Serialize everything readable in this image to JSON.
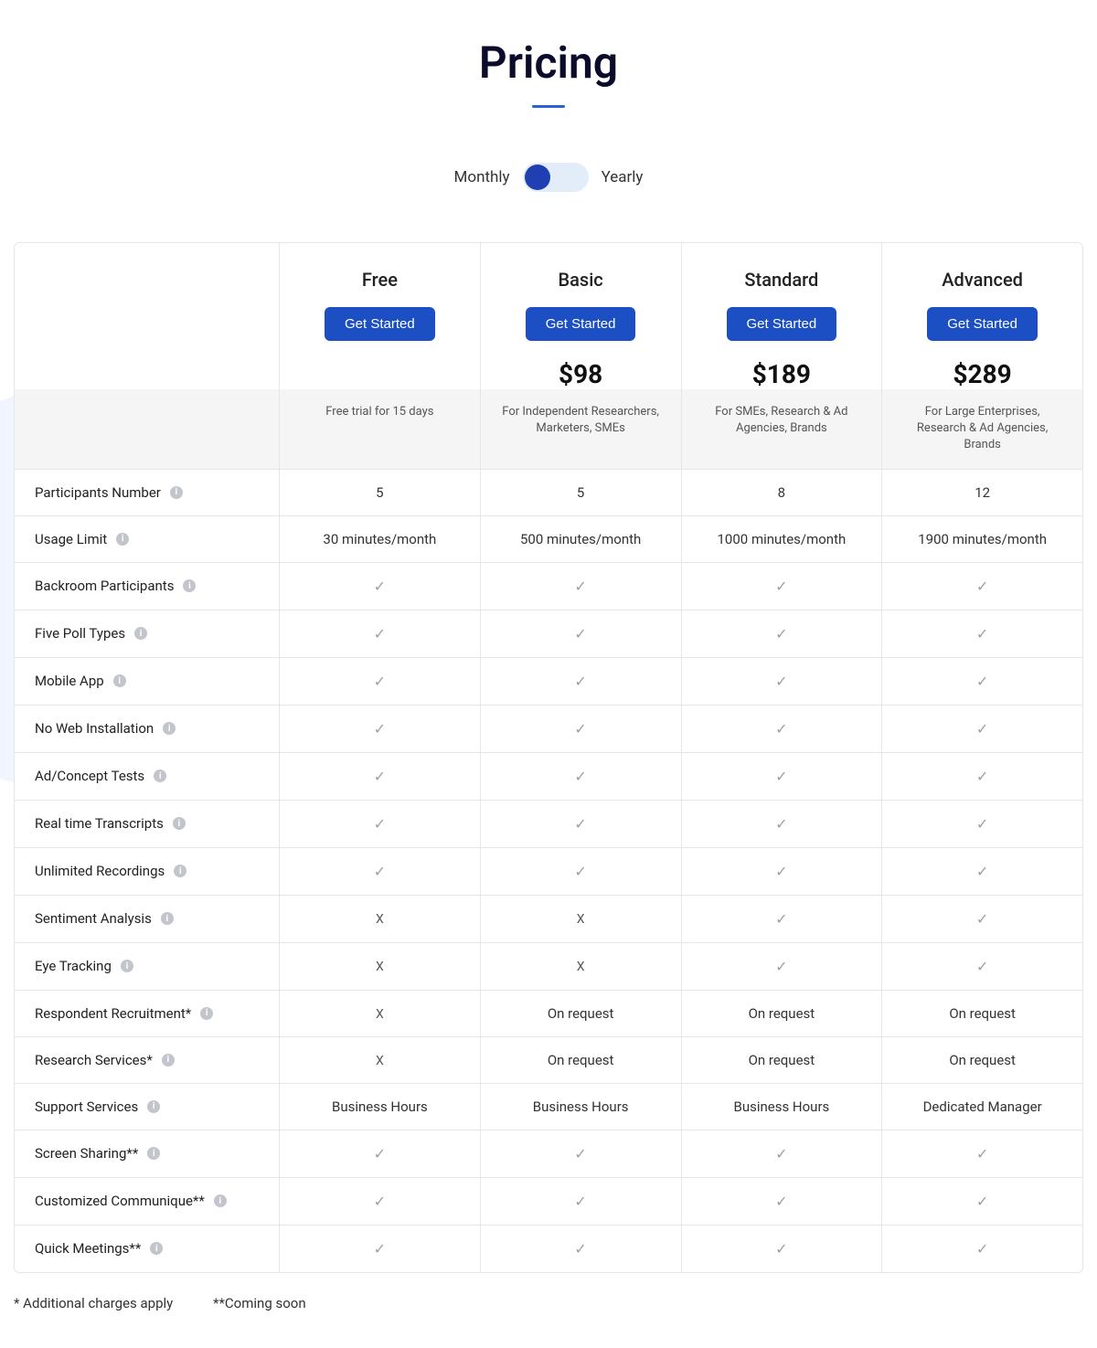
{
  "title": "Pricing",
  "toggle": {
    "left": "Monthly",
    "right": "Yearly"
  },
  "plans": [
    {
      "name": "Free",
      "cta": "Get Started",
      "price": "",
      "desc": "Free trial for 15 days"
    },
    {
      "name": "Basic",
      "cta": "Get Started",
      "price": "$98",
      "desc": "For Independent Researchers, Marketers, SMEs"
    },
    {
      "name": "Standard",
      "cta": "Get Started",
      "price": "$189",
      "desc": "For SMEs, Research & Ad Agencies, Brands"
    },
    {
      "name": "Advanced",
      "cta": "Get Started",
      "price": "$289",
      "desc": "For Large Enterprises, Research & Ad Agencies, Brands"
    }
  ],
  "features": [
    {
      "label": "Participants Number",
      "values": [
        "5",
        "5",
        "8",
        "12"
      ]
    },
    {
      "label": "Usage Limit",
      "values": [
        "30 minutes/month",
        "500 minutes/month",
        "1000 minutes/month",
        "1900 minutes/month"
      ]
    },
    {
      "label": "Backroom Participants",
      "values": [
        "✓",
        "✓",
        "✓",
        "✓"
      ]
    },
    {
      "label": "Five Poll Types",
      "values": [
        "✓",
        "✓",
        "✓",
        "✓"
      ]
    },
    {
      "label": "Mobile App",
      "values": [
        "✓",
        "✓",
        "✓",
        "✓"
      ]
    },
    {
      "label": "No Web Installation",
      "values": [
        "✓",
        "✓",
        "✓",
        "✓"
      ]
    },
    {
      "label": "Ad/Concept Tests",
      "values": [
        "✓",
        "✓",
        "✓",
        "✓"
      ]
    },
    {
      "label": "Real time Transcripts",
      "values": [
        "✓",
        "✓",
        "✓",
        "✓"
      ]
    },
    {
      "label": "Unlimited Recordings",
      "values": [
        "✓",
        "✓",
        "✓",
        "✓"
      ]
    },
    {
      "label": "Sentiment Analysis",
      "values": [
        "X",
        "X",
        "✓",
        "✓"
      ]
    },
    {
      "label": "Eye Tracking",
      "values": [
        "X",
        "X",
        "✓",
        "✓"
      ]
    },
    {
      "label": "Respondent Recruitment*",
      "values": [
        "X",
        "On request",
        "On request",
        "On request"
      ]
    },
    {
      "label": "Research Services*",
      "values": [
        "X",
        "On request",
        "On request",
        "On request"
      ]
    },
    {
      "label": "Support Services",
      "values": [
        "Business Hours",
        "Business Hours",
        "Business Hours",
        "Dedicated Manager"
      ]
    },
    {
      "label": "Screen Sharing**",
      "values": [
        "✓",
        "✓",
        "✓",
        "✓"
      ]
    },
    {
      "label": "Customized Communique**",
      "values": [
        "✓",
        "✓",
        "✓",
        "✓"
      ]
    },
    {
      "label": "Quick Meetings**",
      "values": [
        "✓",
        "✓",
        "✓",
        "✓"
      ]
    }
  ],
  "footnotes": {
    "a": "* Additional charges apply",
    "b": "**Coming soon"
  },
  "colors": {
    "accent": "#1d4fc4",
    "muted_bg": "#f5f5f5",
    "border": "#e6e6e6",
    "blob": "#f1f5ff"
  }
}
